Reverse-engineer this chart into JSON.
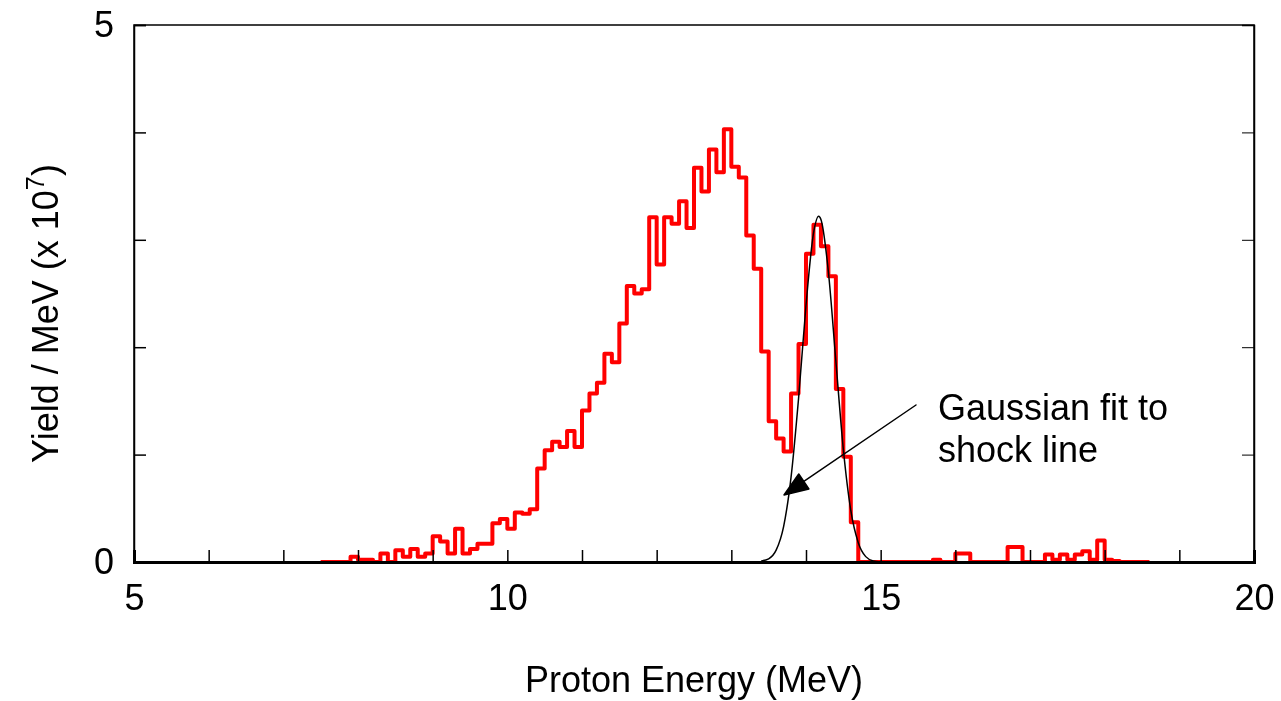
{
  "chart_data": {
    "type": "histogram",
    "xlabel": "Proton Energy (MeV)",
    "ylabel": "Yield / MeV (x 10$^{7}$)",
    "xlim": [
      5,
      20
    ],
    "xticks": [
      5,
      {
        "value": 6,
        "label": null
      },
      {
        "value": 7,
        "label": null
      },
      {
        "value": 8,
        "label": null
      },
      {
        "value": 9,
        "label": null
      },
      10,
      {
        "value": 11,
        "label": null
      },
      {
        "value": 12,
        "label": null
      },
      {
        "value": 13,
        "label": null
      },
      {
        "value": 14,
        "label": null
      },
      15,
      {
        "value": 16,
        "label": null
      },
      {
        "value": 17,
        "label": null
      },
      {
        "value": 18,
        "label": null
      },
      {
        "value": 19,
        "label": null
      },
      20
    ],
    "ylim": [
      0,
      5
    ],
    "yticks": [
      0,
      {
        "value": 1,
        "label": null
      },
      {
        "value": 2,
        "label": null
      },
      {
        "value": 3,
        "label": null
      },
      {
        "value": 4,
        "label": null
      },
      5
    ],
    "grid": false,
    "series": [
      {
        "color": "#ff0000",
        "bins": [
          7.5,
          7.6,
          7.7,
          7.8,
          7.9,
          8.0,
          8.1,
          8.2,
          8.3,
          8.4,
          8.5,
          8.6,
          8.7,
          8.8,
          8.9,
          9.0,
          9.1,
          9.2,
          9.3,
          9.4,
          9.5,
          9.6,
          9.7,
          9.8,
          9.9,
          10.0,
          10.1,
          10.2,
          10.3,
          10.4,
          10.5,
          10.6,
          10.7,
          10.8,
          10.9,
          11.0,
          11.1,
          11.2,
          11.3,
          11.4,
          11.5,
          11.6,
          11.7,
          11.8,
          11.9,
          12.0,
          12.1,
          12.2,
          12.3,
          12.4,
          12.5,
          12.6,
          12.7,
          12.8,
          12.9,
          13.0,
          13.1,
          13.2,
          13.3,
          13.4,
          13.5,
          13.6,
          13.7,
          13.8,
          13.9,
          14.0,
          14.1,
          14.2,
          14.3,
          14.4,
          14.5,
          14.6,
          14.7,
          14.8,
          14.9,
          15.0,
          15.1,
          15.2,
          15.3,
          15.4,
          15.5,
          15.6,
          15.7,
          15.8,
          15.9,
          16.0,
          16.1,
          16.2,
          16.3,
          16.4,
          16.5,
          16.6,
          16.7,
          16.8,
          16.9,
          17.0,
          17.1,
          17.2,
          17.3,
          17.4,
          17.5,
          17.6,
          17.7,
          17.8,
          17.9,
          18.0,
          18.1,
          18.2,
          18.3,
          18.4,
          18.5,
          18.6
        ],
        "values": [
          0,
          0,
          0,
          0,
          0.05,
          0.02,
          0.02,
          0,
          0.08,
          0,
          0.11,
          0.05,
          0.12,
          0.05,
          0.08,
          0.24,
          0.19,
          0.08,
          0.31,
          0.08,
          0.12,
          0.17,
          0.17,
          0.36,
          0.4,
          0.31,
          0.46,
          0.45,
          0.49,
          0.87,
          1.04,
          1.12,
          1.07,
          1.22,
          1.07,
          1.41,
          1.57,
          1.67,
          1.94,
          1.86,
          2.22,
          2.57,
          2.5,
          2.54,
          3.21,
          2.77,
          3.21,
          3.15,
          3.36,
          3.11,
          3.67,
          3.45,
          3.84,
          3.63,
          4.03,
          3.68,
          3.58,
          3.04,
          2.73,
          1.96,
          1.31,
          1.15,
          1.03,
          1.57,
          2.03,
          2.87,
          3.14,
          2.94,
          2.66,
          1.61,
          0.98,
          0.37,
          0,
          0,
          0,
          0,
          0,
          0,
          0,
          0,
          0,
          0,
          0.02,
          0,
          0,
          0.08,
          0.08,
          0,
          0,
          0,
          0,
          0,
          0.14,
          0.14,
          0,
          0,
          0,
          0.07,
          0.02,
          0.07,
          0.02,
          0.07,
          0.1,
          0.02,
          0.2,
          0.02,
          0.01,
          0,
          0,
          0,
          0
        ]
      },
      {
        "type": "line",
        "color": "#000000",
        "x": [
          13.4,
          13.5,
          13.6,
          13.7,
          13.8,
          13.9,
          14.0,
          14.1,
          14.17,
          14.2,
          14.3,
          14.4,
          14.5,
          14.6,
          14.7,
          14.8,
          14.9,
          15.0
        ],
        "values": [
          0.01,
          0.03,
          0.11,
          0.33,
          0.79,
          1.52,
          2.39,
          3.06,
          3.22,
          3.19,
          2.7,
          1.87,
          1.05,
          0.48,
          0.18,
          0.05,
          0.01,
          0
        ]
      }
    ],
    "annotations": [
      "Gaussian fit to\nshock line"
    ]
  }
}
